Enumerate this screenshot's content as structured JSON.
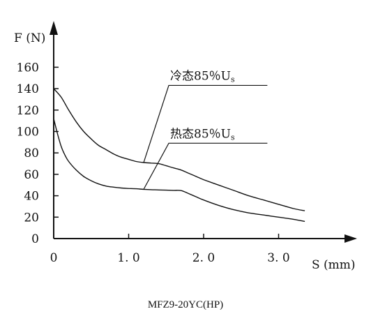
{
  "chart_data": {
    "type": "line",
    "title": "",
    "caption": "MFZ9-20YC(HP)",
    "xlabel": "S (mm)",
    "ylabel": "F (N)",
    "xlim": [
      0,
      3.8
    ],
    "ylim": [
      0,
      180
    ],
    "x_ticks": [
      {
        "value": 0,
        "label": "0"
      },
      {
        "value": 1.0,
        "label": "1. 0"
      },
      {
        "value": 2.0,
        "label": "2. 0"
      },
      {
        "value": 3.0,
        "label": "3. 0"
      }
    ],
    "y_ticks": [
      {
        "value": 0,
        "label": "0"
      },
      {
        "value": 20,
        "label": "20"
      },
      {
        "value": 40,
        "label": "40"
      },
      {
        "value": 60,
        "label": "60"
      },
      {
        "value": 80,
        "label": "80"
      },
      {
        "value": 100,
        "label": "100"
      },
      {
        "value": 120,
        "label": "120"
      },
      {
        "value": 140,
        "label": "140"
      },
      {
        "value": 160,
        "label": "160"
      }
    ],
    "grid": false,
    "legend": "none",
    "series": [
      {
        "label": "冷态85％U",
        "label_sub": "s",
        "annotation": {
          "point": [
            1.2,
            71
          ],
          "text_at": [
            2.0,
            145
          ]
        },
        "x": [
          0,
          0.1,
          0.2,
          0.3,
          0.4,
          0.5,
          0.6,
          0.7,
          0.8,
          0.9,
          1.0,
          1.1,
          1.2,
          1.3,
          1.4,
          1.5,
          1.6,
          1.7,
          1.8,
          1.9,
          2.0,
          2.2,
          2.4,
          2.6,
          2.8,
          3.0,
          3.2,
          3.35
        ],
        "y": [
          140,
          132,
          120,
          109,
          100,
          93,
          87,
          83,
          79,
          76,
          74,
          72,
          71,
          70.5,
          70,
          68,
          66,
          64,
          61,
          58,
          55,
          50,
          45,
          40,
          36,
          32,
          28,
          26
        ]
      },
      {
        "label": "热态85％U",
        "label_sub": "s",
        "annotation": {
          "point": [
            1.2,
            46
          ],
          "text_at": [
            2.0,
            91
          ]
        },
        "x": [
          0,
          0.05,
          0.1,
          0.15,
          0.2,
          0.3,
          0.4,
          0.5,
          0.6,
          0.7,
          0.8,
          0.9,
          1.0,
          1.1,
          1.2,
          1.3,
          1.4,
          1.5,
          1.6,
          1.7,
          1.8,
          1.9,
          2.0,
          2.2,
          2.4,
          2.6,
          2.8,
          3.0,
          3.2,
          3.35
        ],
        "y": [
          112,
          98,
          86,
          78,
          72,
          64,
          58,
          54,
          51,
          49,
          48,
          47.2,
          46.8,
          46.5,
          46,
          45.7,
          45.4,
          45.2,
          45,
          44.8,
          42,
          39,
          36,
          31,
          27,
          24,
          22,
          20,
          18,
          16
        ]
      }
    ]
  }
}
